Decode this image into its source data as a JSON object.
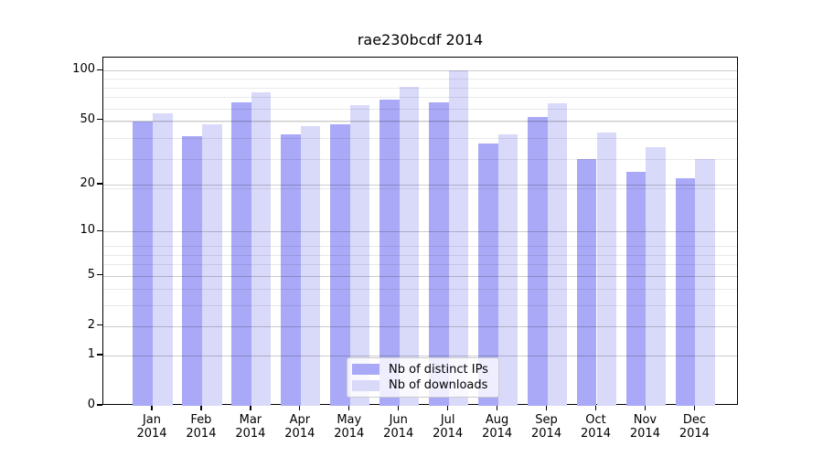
{
  "figure": {
    "background": "#ffffff"
  },
  "chart_data": {
    "type": "bar",
    "title": "rae230bcdf 2014",
    "x_ticks": [
      {
        "month": "Jan",
        "year": "2014"
      },
      {
        "month": "Feb",
        "year": "2014"
      },
      {
        "month": "Mar",
        "year": "2014"
      },
      {
        "month": "Apr",
        "year": "2014"
      },
      {
        "month": "May",
        "year": "2014"
      },
      {
        "month": "Jun",
        "year": "2014"
      },
      {
        "month": "Jul",
        "year": "2014"
      },
      {
        "month": "Aug",
        "year": "2014"
      },
      {
        "month": "Sep",
        "year": "2014"
      },
      {
        "month": "Oct",
        "year": "2014"
      },
      {
        "month": "Nov",
        "year": "2014"
      },
      {
        "month": "Dec",
        "year": "2014"
      }
    ],
    "series": [
      {
        "name": "Nb of distinct IPs",
        "color": "#a9a9f7",
        "values": [
          49,
          40,
          64,
          41,
          47,
          67,
          64,
          36,
          52,
          29,
          24,
          22
        ]
      },
      {
        "name": "Nb of downloads",
        "color": "#d9d9fa",
        "values": [
          55,
          47,
          74,
          46,
          62,
          80,
          100,
          41,
          63,
          42,
          34,
          29
        ]
      }
    ],
    "y_axis": {
      "scale": "log1p",
      "ticks": [
        0,
        1,
        2,
        5,
        10,
        20,
        50,
        100
      ],
      "minor_gridlines": [
        3,
        4,
        6,
        7,
        8,
        19,
        29,
        39,
        49,
        59,
        69,
        79,
        89
      ],
      "range": [
        0,
        119
      ]
    },
    "legend": {
      "position": "lower center"
    },
    "grid": true
  }
}
